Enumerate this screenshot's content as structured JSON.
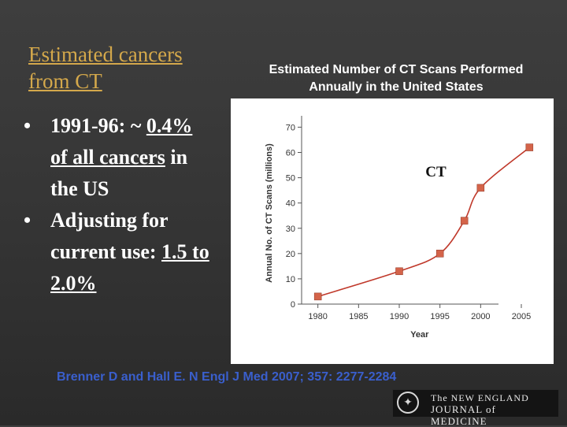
{
  "slide": {
    "title_line1": "Estimated cancers",
    "title_line2": "from CT",
    "bullets": {
      "b1_prefix": "1991-96: ~ ",
      "b1_pct": "0.4%",
      "b1_line2": "of all cancers",
      "b1_line2_rest": " in",
      "b1_line3": "the US",
      "b2_line1": "Adjusting for",
      "b2_line2_prefix": "current use: ",
      "b2_range_start": "1.5 to",
      "b2_range_end": "2.0%"
    },
    "chart_heading_line1": "Estimated Number of CT Scans Performed",
    "chart_heading_line2": "Annually in the United States",
    "citation": "Brenner D and Hall E. N Engl J Med 2007; 357: 2277-2284",
    "logo": {
      "line1": "The NEW ENGLAND",
      "line2": "JOURNAL of MEDICINE"
    },
    "icon": "nejm-seal-icon"
  },
  "chart_data": {
    "type": "line",
    "xlabel": "Year",
    "ylabel": "Annual No. of CT Scans (millions)",
    "x_ticks": [
      1980,
      1985,
      1990,
      1995,
      2000,
      2005
    ],
    "y_ticks": [
      0,
      10,
      20,
      30,
      40,
      50,
      60,
      70
    ],
    "xlim": [
      1978,
      2008
    ],
    "ylim": [
      0,
      72
    ],
    "annotation": "CT",
    "line_color": "#c0392b",
    "point_color": "#d4644a",
    "grid": false,
    "series": [
      {
        "x": [
          1980,
          1990,
          1995,
          1998,
          2000,
          2006
        ],
        "y": [
          3,
          13,
          20,
          33,
          46,
          62
        ]
      }
    ]
  }
}
